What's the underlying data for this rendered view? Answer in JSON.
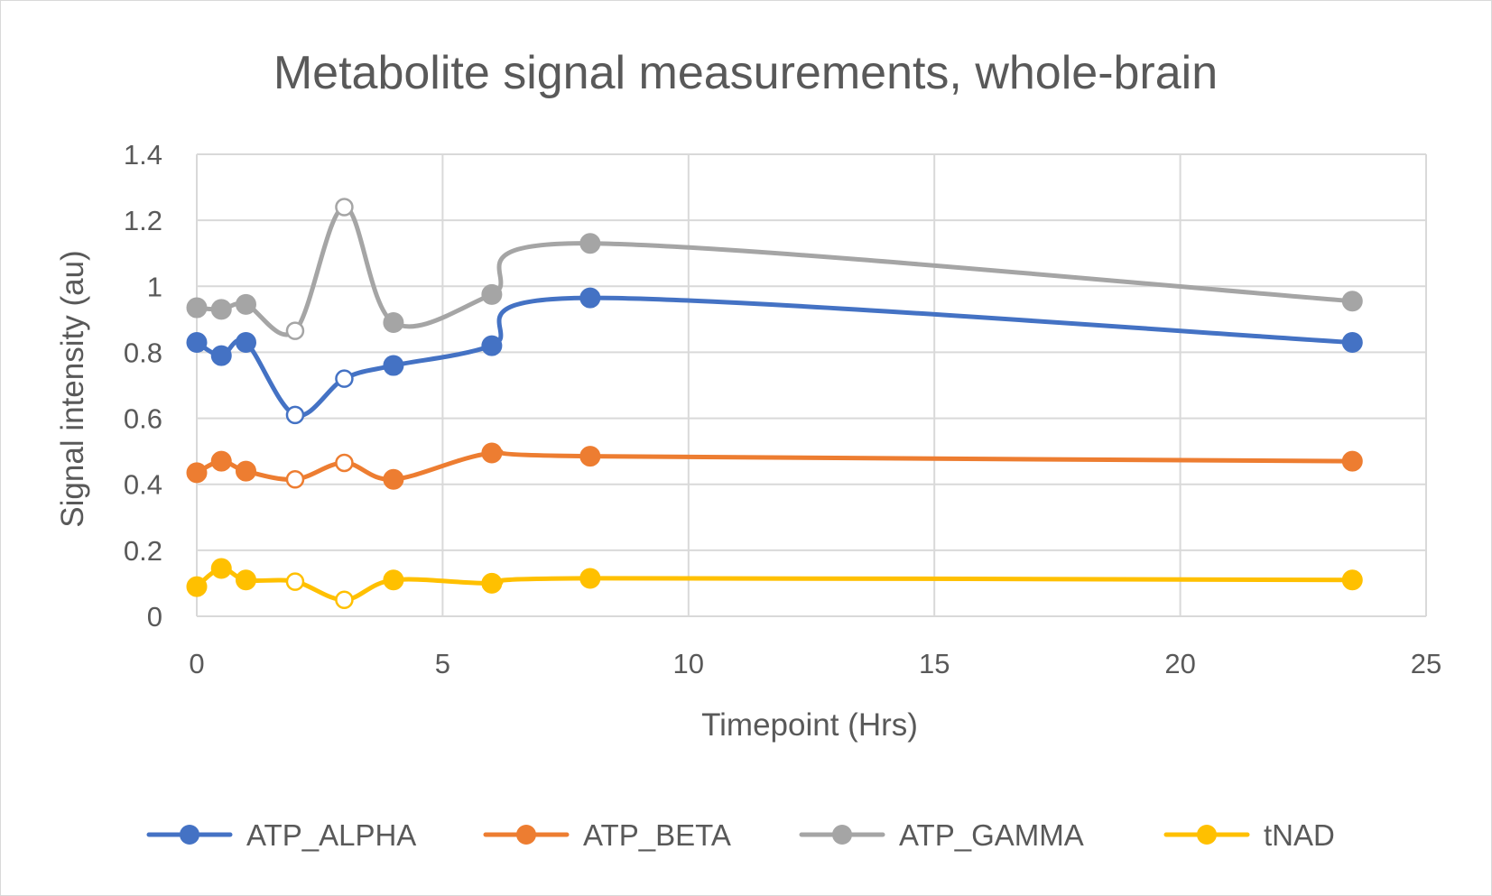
{
  "chart_data": {
    "type": "line",
    "title": "Metabolite signal measurements, whole-brain",
    "xlabel": "Timepoint (Hrs)",
    "ylabel": "Signal intensity (au)",
    "xlim": [
      0,
      25
    ],
    "ylim": [
      0,
      1.4
    ],
    "x_ticks": [
      "0",
      "5",
      "10",
      "15",
      "20",
      "25"
    ],
    "y_ticks": [
      "0",
      "0.2",
      "0.4",
      "0.6",
      "0.8",
      "1",
      "1.2",
      "1.4"
    ],
    "grid": true,
    "legend_position": "bottom",
    "smooth": true,
    "x": [
      0,
      0.5,
      1,
      2,
      3,
      4,
      6,
      8,
      23.5
    ],
    "hollow_marker_indices": [
      3,
      4
    ],
    "series": [
      {
        "name": "ATP_ALPHA",
        "color": "#4472c4",
        "values": [
          0.83,
          0.79,
          0.83,
          0.61,
          0.72,
          0.76,
          0.82,
          0.965,
          0.83
        ]
      },
      {
        "name": "ATP_BETA",
        "color": "#ed7d31",
        "values": [
          0.435,
          0.47,
          0.44,
          0.415,
          0.465,
          0.415,
          0.495,
          0.485,
          0.47
        ]
      },
      {
        "name": "ATP_GAMMA",
        "color": "#a5a5a5",
        "values": [
          0.935,
          0.93,
          0.945,
          0.865,
          1.24,
          0.89,
          0.975,
          1.13,
          0.955
        ]
      },
      {
        "name": "tNAD",
        "color": "#ffc000",
        "values": [
          0.09,
          0.145,
          0.11,
          0.105,
          0.05,
          0.11,
          0.1,
          0.115,
          0.11
        ]
      }
    ]
  }
}
